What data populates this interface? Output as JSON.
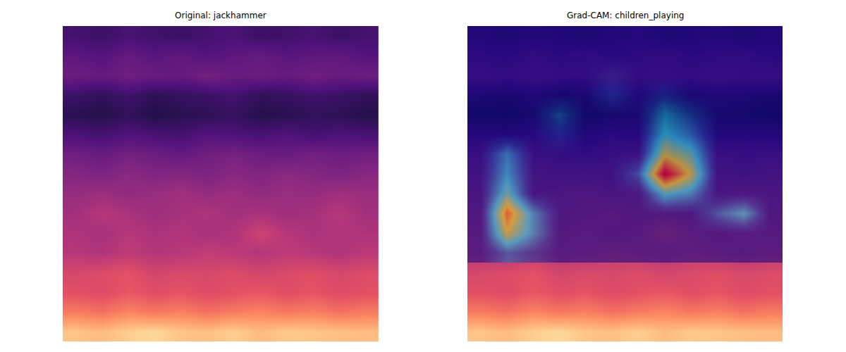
{
  "chart_data": [
    {
      "type": "heatmap",
      "title": "Original: jackhammer",
      "color": "magma",
      "zlim": [
        0,
        1
      ],
      "tick_labels": false,
      "z": [
        [
          0.22,
          0.2,
          0.23,
          0.21,
          0.2,
          0.22,
          0.24,
          0.2,
          0.21,
          0.23,
          0.2,
          0.22
        ],
        [
          0.28,
          0.26,
          0.3,
          0.27,
          0.29,
          0.26,
          0.28,
          0.3,
          0.27,
          0.28,
          0.29,
          0.26
        ],
        [
          0.32,
          0.3,
          0.33,
          0.31,
          0.3,
          0.34,
          0.31,
          0.32,
          0.3,
          0.33,
          0.31,
          0.32
        ],
        [
          0.2,
          0.18,
          0.21,
          0.17,
          0.19,
          0.2,
          0.22,
          0.18,
          0.19,
          0.21,
          0.2,
          0.18
        ],
        [
          0.16,
          0.15,
          0.18,
          0.14,
          0.16,
          0.17,
          0.19,
          0.15,
          0.16,
          0.18,
          0.17,
          0.15
        ],
        [
          0.24,
          0.22,
          0.25,
          0.23,
          0.22,
          0.26,
          0.24,
          0.23,
          0.25,
          0.22,
          0.24,
          0.23
        ],
        [
          0.33,
          0.31,
          0.34,
          0.32,
          0.3,
          0.33,
          0.35,
          0.32,
          0.31,
          0.34,
          0.32,
          0.33
        ],
        [
          0.38,
          0.36,
          0.4,
          0.37,
          0.38,
          0.36,
          0.39,
          0.37,
          0.4,
          0.38,
          0.36,
          0.39
        ],
        [
          0.42,
          0.44,
          0.41,
          0.43,
          0.45,
          0.42,
          0.44,
          0.41,
          0.43,
          0.42,
          0.45,
          0.43
        ],
        [
          0.45,
          0.5,
          0.47,
          0.44,
          0.46,
          0.48,
          0.45,
          0.47,
          0.44,
          0.46,
          0.5,
          0.45
        ],
        [
          0.48,
          0.46,
          0.5,
          0.47,
          0.49,
          0.46,
          0.48,
          0.56,
          0.5,
          0.47,
          0.49,
          0.48
        ],
        [
          0.5,
          0.48,
          0.52,
          0.49,
          0.5,
          0.53,
          0.51,
          0.49,
          0.52,
          0.5,
          0.48,
          0.51
        ],
        [
          0.58,
          0.6,
          0.62,
          0.57,
          0.59,
          0.58,
          0.6,
          0.57,
          0.59,
          0.61,
          0.58,
          0.6
        ],
        [
          0.62,
          0.6,
          0.64,
          0.61,
          0.63,
          0.6,
          0.62,
          0.64,
          0.61,
          0.63,
          0.6,
          0.62
        ],
        [
          0.72,
          0.7,
          0.74,
          0.71,
          0.73,
          0.7,
          0.72,
          0.74,
          0.71,
          0.73,
          0.7,
          0.72
        ],
        [
          0.88,
          0.86,
          0.9,
          0.92,
          0.88,
          0.87,
          0.9,
          0.86,
          0.89,
          0.88,
          0.87,
          0.86
        ]
      ]
    },
    {
      "type": "heatmap",
      "title": "Grad-CAM: children_playing",
      "color": "magma",
      "zlim": [
        0,
        1
      ],
      "tick_labels": false,
      "z": [
        [
          0.22,
          0.2,
          0.23,
          0.21,
          0.2,
          0.22,
          0.24,
          0.2,
          0.21,
          0.23,
          0.2,
          0.22
        ],
        [
          0.28,
          0.26,
          0.3,
          0.27,
          0.29,
          0.26,
          0.28,
          0.3,
          0.27,
          0.28,
          0.29,
          0.26
        ],
        [
          0.32,
          0.3,
          0.33,
          0.31,
          0.3,
          0.34,
          0.31,
          0.32,
          0.3,
          0.33,
          0.31,
          0.32
        ],
        [
          0.2,
          0.18,
          0.21,
          0.17,
          0.19,
          0.2,
          0.22,
          0.18,
          0.19,
          0.21,
          0.2,
          0.18
        ],
        [
          0.16,
          0.15,
          0.18,
          0.14,
          0.16,
          0.17,
          0.19,
          0.15,
          0.16,
          0.18,
          0.17,
          0.15
        ],
        [
          0.24,
          0.22,
          0.25,
          0.23,
          0.22,
          0.26,
          0.24,
          0.23,
          0.25,
          0.22,
          0.24,
          0.23
        ],
        [
          0.33,
          0.31,
          0.34,
          0.32,
          0.3,
          0.33,
          0.35,
          0.32,
          0.31,
          0.34,
          0.32,
          0.33
        ],
        [
          0.38,
          0.36,
          0.4,
          0.37,
          0.38,
          0.36,
          0.39,
          0.37,
          0.4,
          0.38,
          0.36,
          0.39
        ],
        [
          0.42,
          0.44,
          0.41,
          0.43,
          0.45,
          0.42,
          0.44,
          0.41,
          0.43,
          0.42,
          0.45,
          0.43
        ],
        [
          0.45,
          0.5,
          0.47,
          0.44,
          0.46,
          0.48,
          0.45,
          0.47,
          0.44,
          0.46,
          0.5,
          0.45
        ],
        [
          0.48,
          0.46,
          0.5,
          0.47,
          0.49,
          0.46,
          0.48,
          0.56,
          0.5,
          0.47,
          0.49,
          0.48
        ],
        [
          0.5,
          0.48,
          0.52,
          0.49,
          0.5,
          0.53,
          0.51,
          0.49,
          0.52,
          0.5,
          0.48,
          0.51
        ],
        [
          0.58,
          0.6,
          0.62,
          0.57,
          0.59,
          0.58,
          0.6,
          0.57,
          0.59,
          0.61,
          0.58,
          0.6
        ],
        [
          0.62,
          0.6,
          0.64,
          0.61,
          0.63,
          0.6,
          0.62,
          0.64,
          0.61,
          0.63,
          0.6,
          0.62
        ],
        [
          0.72,
          0.7,
          0.74,
          0.71,
          0.73,
          0.7,
          0.72,
          0.74,
          0.71,
          0.73,
          0.7,
          0.72
        ],
        [
          0.88,
          0.86,
          0.9,
          0.92,
          0.88,
          0.87,
          0.9,
          0.86,
          0.89,
          0.88,
          0.87,
          0.86
        ]
      ],
      "overlay": {
        "color": "jet",
        "zlim": [
          0,
          1
        ],
        "z": [
          [
            0,
            0,
            0,
            0,
            0,
            0,
            0,
            0,
            0,
            0,
            0,
            0
          ],
          [
            0,
            0,
            0,
            0,
            0,
            0,
            0,
            0,
            0,
            0,
            0,
            0
          ],
          [
            0,
            0,
            0,
            0,
            0,
            0.05,
            0,
            0,
            0,
            0,
            0,
            0
          ],
          [
            0,
            0,
            0,
            0,
            0,
            0.12,
            0,
            0.1,
            0,
            0,
            0,
            0
          ],
          [
            0,
            0,
            0,
            0.2,
            0,
            0,
            0,
            0.3,
            0.15,
            0,
            0,
            0
          ],
          [
            0,
            0,
            0,
            0.1,
            0,
            0,
            0,
            0.4,
            0.25,
            0,
            0,
            0
          ],
          [
            0,
            0.3,
            0,
            0,
            0,
            0,
            0,
            0.6,
            0.45,
            0,
            0,
            0
          ],
          [
            0,
            0.35,
            0,
            0,
            0,
            0,
            0.2,
            0.95,
            0.6,
            0,
            0,
            0
          ],
          [
            0,
            0.45,
            0,
            0,
            0,
            0,
            0,
            0.4,
            0.3,
            0,
            0,
            0
          ],
          [
            0,
            0.75,
            0.3,
            0,
            0,
            0,
            0,
            0,
            0,
            0.2,
            0.35,
            0
          ],
          [
            0,
            0.6,
            0.3,
            0,
            0,
            0,
            0,
            0,
            0,
            0,
            0,
            0
          ],
          [
            0,
            0.2,
            0.1,
            0,
            0,
            0,
            0,
            0,
            0,
            0,
            0,
            0
          ]
        ]
      }
    }
  ]
}
